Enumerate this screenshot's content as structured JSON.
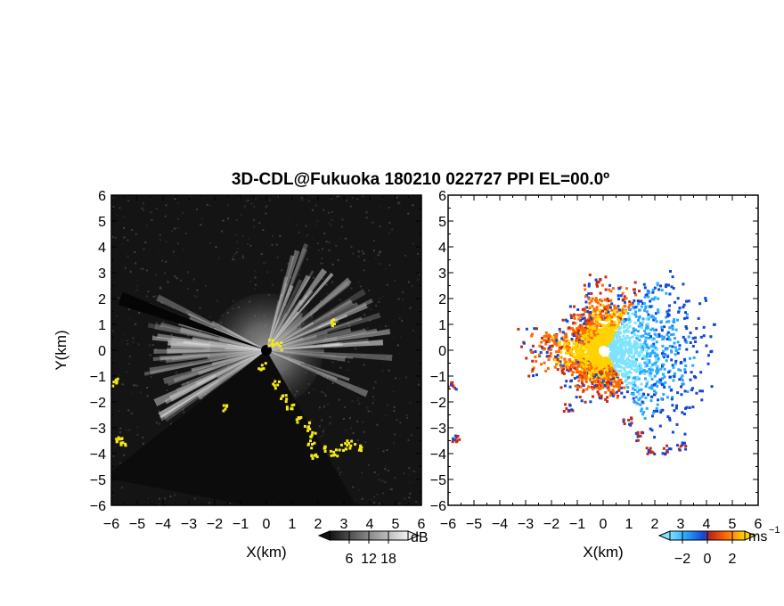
{
  "title": "3D-CDL@Fukuoka 180210 022727 PPI EL=00.0º",
  "chart_data": [
    {
      "type": "heatmap",
      "panel": "backscatter intensity",
      "xlabel": "X(km)",
      "ylabel": "Y(km)",
      "xlim": [
        -6,
        6
      ],
      "ylim": [
        -6,
        6
      ],
      "xticks": [
        "−6",
        "−5",
        "−4",
        "−3",
        "−2",
        "−1",
        "0",
        "1",
        "2",
        "3",
        "4",
        "5",
        "6"
      ],
      "yticks": [
        "6",
        "5",
        "4",
        "3",
        "2",
        "1",
        "0",
        "−1",
        "−2",
        "−3",
        "−4",
        "−5",
        "−6"
      ],
      "background_color": "#141414",
      "beam_color": "#d8d8d8",
      "highlight_color": "#f5e81c",
      "colorbar": {
        "unit": "dB",
        "ticks": [
          "6",
          "12",
          "18"
        ],
        "range": [
          0,
          24
        ]
      }
    },
    {
      "type": "heatmap",
      "panel": "radial velocity",
      "xlabel": "X(km)",
      "xlim": [
        -6,
        6
      ],
      "ylim": [
        -6,
        6
      ],
      "xticks": [
        "−6",
        "−5",
        "−4",
        "−3",
        "−2",
        "−1",
        "0",
        "1",
        "2",
        "3",
        "4",
        "5",
        "6"
      ],
      "yticks": [
        "6",
        "5",
        "4",
        "3",
        "2",
        "1",
        "0",
        "−1",
        "−2",
        "−3",
        "−4",
        "−5",
        "−6"
      ],
      "background_color": "#ffffff",
      "colorbar": {
        "unit": "ms",
        "unit_exponent": "−1",
        "ticks": [
          "−2",
          "0",
          "2"
        ],
        "range": [
          -3,
          3
        ],
        "colors": [
          "#7fe3ff",
          "#2aa9ff",
          "#1346d8",
          "#c82a12",
          "#ff6a00",
          "#ffd200"
        ]
      }
    }
  ]
}
